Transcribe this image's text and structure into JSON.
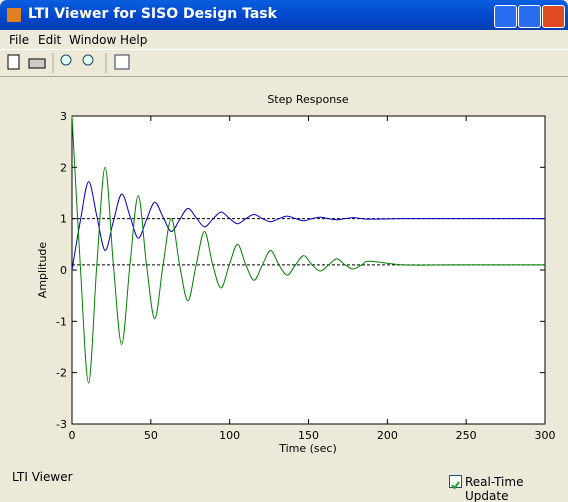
{
  "window": {
    "title": "LTI Viewer for SISO Design Task",
    "menu": [
      "File",
      "Edit",
      "Window",
      "Help"
    ],
    "status": "LTI Viewer",
    "checkbox_label": "Real-Time Update"
  },
  "chart_data": {
    "type": "line",
    "title": "Step Response",
    "x_label": "Time (sec)",
    "y_label": "Amplitude",
    "xlim": [
      0,
      300
    ],
    "ylim": [
      -3,
      3
    ],
    "xticks": [
      0,
      50,
      100,
      150,
      200,
      250,
      300
    ],
    "yticks": [
      -3,
      -2,
      -1,
      0,
      1,
      2,
      3
    ],
    "x": [
      0,
      5.25,
      10.5,
      15.75,
      21,
      26.25,
      31.5,
      36.75,
      42,
      47.25,
      52.5,
      57.75,
      63,
      68.25,
      73.5,
      78.75,
      84,
      89.25,
      94.5,
      99.75,
      105,
      110.25,
      115.5,
      120.75,
      126,
      131.25,
      136.5,
      141.75,
      147,
      152.25,
      157.5,
      162.75,
      168,
      173.25,
      178.5,
      183.75,
      189,
      210,
      240,
      270,
      300
    ],
    "series": [
      {
        "color": "#0000c0",
        "values": [
          0,
          0.95,
          1.72,
          1.05,
          0.38,
          0.95,
          1.48,
          1.05,
          0.62,
          0.98,
          1.32,
          1.03,
          0.75,
          0.98,
          1.2,
          1.02,
          0.84,
          0.99,
          1.13,
          1.01,
          0.9,
          1,
          1.08,
          1,
          0.94,
          1,
          1.05,
          1,
          0.96,
          1,
          1.03,
          1,
          0.98,
          1,
          1.02,
          1,
          0.99,
          1,
          1,
          1,
          1
        ]
      },
      {
        "color": "#008000",
        "values": [
          3,
          0.1,
          -2.2,
          0.1,
          2,
          0.1,
          -1.45,
          0.1,
          1.45,
          0.1,
          -0.95,
          0.1,
          1,
          0.1,
          -0.6,
          0.1,
          0.75,
          0.1,
          -0.35,
          0.1,
          0.5,
          0.1,
          -0.2,
          0.1,
          0.38,
          0.1,
          -0.1,
          0.1,
          0.28,
          0.1,
          -0.02,
          0.1,
          0.22,
          0.1,
          0.02,
          0.1,
          0.17,
          0.1,
          0.1,
          0.1,
          0.1
        ]
      }
    ],
    "hlines": [
      {
        "value": 1,
        "color": "#000000"
      },
      {
        "value": 0.1,
        "color": "#000000"
      }
    ]
  }
}
